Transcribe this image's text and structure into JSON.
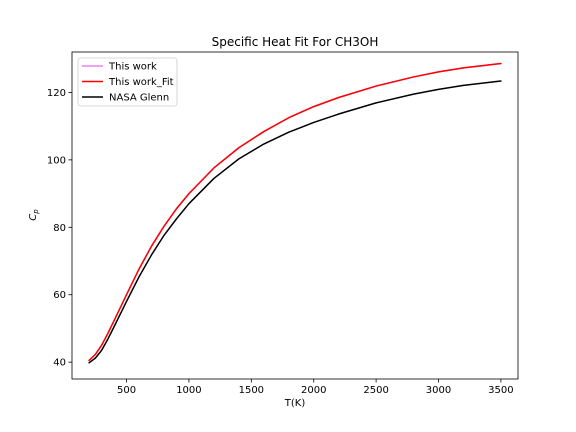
{
  "chart_data": {
    "type": "line",
    "title": "Specific Heat Fit For CH3OH",
    "xlabel": "T(K)",
    "ylabel": "C",
    "ylabel_subscript": "p",
    "xlim": [
      63,
      3637
    ],
    "ylim": [
      35,
      132
    ],
    "xticks": [
      500,
      1000,
      1500,
      2000,
      2500,
      3000,
      3500
    ],
    "yticks": [
      40,
      60,
      80,
      100,
      120
    ],
    "grid": false,
    "legend_position": "upper-left",
    "series": [
      {
        "name": "This work",
        "color": "#ee82ee",
        "x": [
          200,
          250,
          300,
          350,
          400,
          500,
          600,
          700,
          800,
          900,
          1000,
          1200,
          1400,
          1600,
          1800,
          2000,
          2200,
          2500,
          2800,
          3000,
          3200,
          3500
        ],
        "y": [
          40.5,
          42.3,
          45.0,
          48.5,
          52.3,
          60.0,
          67.6,
          74.4,
          80.3,
          85.5,
          90.0,
          97.6,
          103.6,
          108.4,
          112.5,
          115.8,
          118.5,
          121.9,
          124.6,
          126.1,
          127.3,
          128.6
        ]
      },
      {
        "name": "This work_Fit",
        "color": "#ff0000",
        "x": [
          200,
          250,
          300,
          350,
          400,
          500,
          600,
          700,
          800,
          900,
          1000,
          1200,
          1400,
          1600,
          1800,
          2000,
          2200,
          2500,
          2800,
          3000,
          3200,
          3500
        ],
        "y": [
          40.5,
          42.3,
          45.0,
          48.5,
          52.3,
          60.0,
          67.6,
          74.4,
          80.3,
          85.5,
          90.0,
          97.6,
          103.6,
          108.4,
          112.5,
          115.8,
          118.5,
          121.9,
          124.6,
          126.1,
          127.3,
          128.6
        ]
      },
      {
        "name": "NASA Glenn",
        "color": "#000000",
        "x": [
          200,
          250,
          300,
          350,
          400,
          500,
          600,
          700,
          800,
          900,
          1000,
          1200,
          1400,
          1600,
          1800,
          2000,
          2200,
          2500,
          2800,
          3000,
          3200,
          3500
        ],
        "y": [
          39.8,
          41.2,
          43.5,
          46.8,
          50.5,
          58.0,
          65.3,
          71.8,
          77.6,
          82.5,
          87.0,
          94.5,
          100.3,
          104.7,
          108.2,
          111.1,
          113.6,
          116.9,
          119.5,
          120.9,
          122.1,
          123.4
        ]
      }
    ]
  }
}
